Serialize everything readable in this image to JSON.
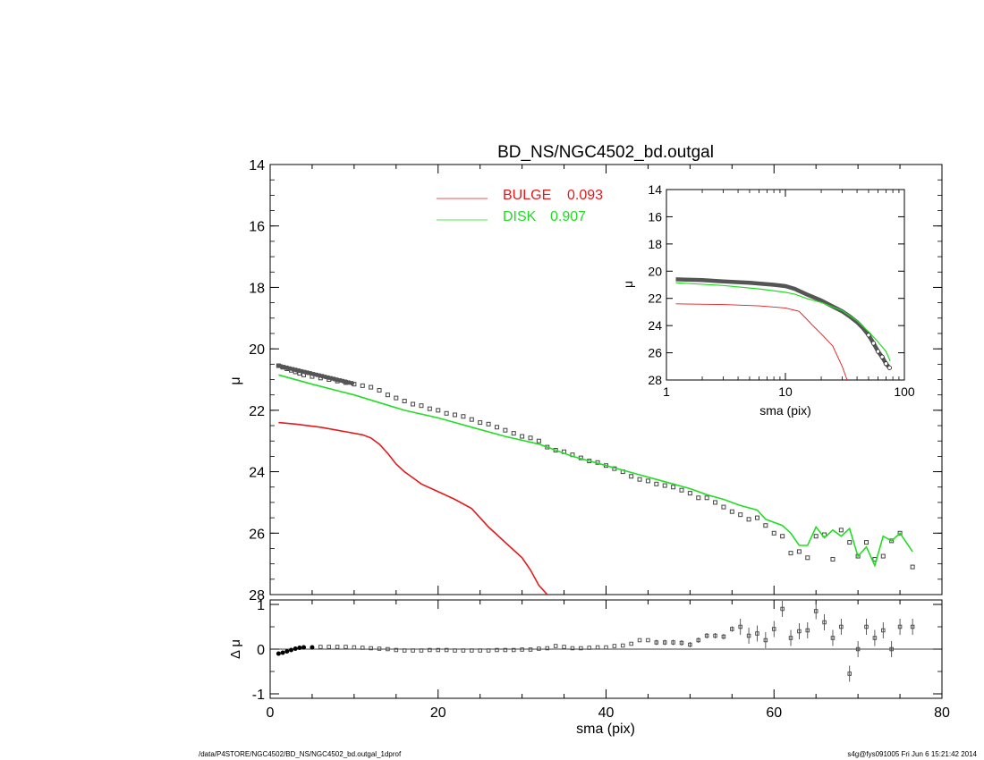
{
  "chart_data": [
    {
      "type": "scatter",
      "title": "BD_NS/NGC4502_bd.outgal",
      "ylabel": "μ",
      "xlim": [
        0,
        80
      ],
      "ylim": [
        28,
        14
      ],
      "yticks": [
        "14",
        "16",
        "18",
        "20",
        "22",
        "24",
        "26",
        "28"
      ],
      "legend": [
        {
          "label": "BULGE",
          "value": "0.093",
          "color": "#e31a1c"
        },
        {
          "label": "DISK",
          "value": "0.907",
          "color": "#22dd22"
        }
      ],
      "legend_placement": "top-center",
      "colors": {
        "bulge": "#e31a1c",
        "disk": "#22dd22",
        "data": "#555555"
      },
      "series": [
        {
          "name": "BULGE",
          "values_x": [
            1,
            3,
            6,
            9,
            11,
            12,
            13,
            14,
            15,
            16,
            17,
            18,
            20,
            22,
            24,
            26,
            28,
            30,
            31,
            32,
            33
          ],
          "values_y": [
            22.4,
            22.45,
            22.55,
            22.7,
            22.8,
            22.9,
            23.1,
            23.4,
            23.75,
            24.0,
            24.2,
            24.4,
            24.65,
            24.9,
            25.2,
            25.8,
            26.3,
            26.8,
            27.2,
            27.7,
            28.0
          ]
        },
        {
          "name": "DISK",
          "values_x": [
            1,
            5,
            10,
            13,
            16,
            20,
            24,
            28,
            32,
            34,
            36,
            40,
            42,
            44,
            46,
            48,
            50,
            52,
            54,
            56,
            58,
            59,
            61,
            62,
            63,
            64,
            65,
            66,
            67,
            68,
            69,
            70,
            71,
            72,
            73,
            74,
            75,
            76.5
          ],
          "values_y": [
            20.85,
            21.15,
            21.5,
            21.75,
            22.0,
            22.25,
            22.55,
            22.85,
            23.1,
            23.3,
            23.5,
            23.8,
            23.95,
            24.1,
            24.25,
            24.4,
            24.55,
            24.75,
            24.9,
            25.1,
            25.25,
            25.55,
            25.75,
            26.0,
            26.4,
            26.4,
            25.8,
            26.15,
            25.9,
            26.1,
            25.85,
            26.75,
            26.45,
            27.05,
            26.1,
            26.25,
            26.0,
            26.6
          ]
        },
        {
          "name": "",
          "values_x": [
            1,
            1.5,
            2,
            2.5,
            3,
            3.5,
            4,
            5,
            6,
            7,
            8,
            9,
            10,
            11,
            12,
            13,
            14,
            15,
            16,
            17,
            18,
            19,
            20,
            21,
            22,
            23,
            24,
            25,
            26,
            27,
            28,
            29,
            30,
            31,
            32,
            33,
            34,
            35,
            36,
            37,
            38,
            39,
            40,
            41,
            42,
            43,
            44,
            45,
            46,
            47,
            48,
            49,
            50,
            51,
            52,
            53,
            54,
            55,
            56,
            57,
            58,
            59,
            60,
            61,
            62,
            63,
            64,
            65,
            66,
            67,
            68,
            69,
            70,
            71,
            72,
            73,
            74,
            75,
            76.5
          ],
          "values_y": [
            20.55,
            20.6,
            20.65,
            20.7,
            20.75,
            20.8,
            20.85,
            20.9,
            20.95,
            21.0,
            21.05,
            21.1,
            21.15,
            21.2,
            21.25,
            21.35,
            21.5,
            21.6,
            21.7,
            21.8,
            21.85,
            21.95,
            22.0,
            22.1,
            22.15,
            22.2,
            22.3,
            22.4,
            22.45,
            22.55,
            22.65,
            22.75,
            22.85,
            22.9,
            23.0,
            23.2,
            23.3,
            23.35,
            23.45,
            23.55,
            23.65,
            23.7,
            23.8,
            23.9,
            24.0,
            24.15,
            24.25,
            24.3,
            24.4,
            24.45,
            24.5,
            24.6,
            24.7,
            24.85,
            24.85,
            25.0,
            25.15,
            25.3,
            25.4,
            25.55,
            25.5,
            25.75,
            26.0,
            26.1,
            26.65,
            26.6,
            26.8,
            26.1,
            26.05,
            26.85,
            25.9,
            26.3,
            26.75,
            26.3,
            26.85,
            26.75,
            26.25,
            26.0,
            27.1
          ]
        }
      ]
    },
    {
      "type": "scatter",
      "xlabel": "sma (pix)",
      "ylabel": "μ",
      "xscale": "log",
      "xlim": [
        1,
        100
      ],
      "ylim": [
        28,
        14
      ],
      "xticks": [
        "1",
        "10",
        "100"
      ],
      "yticks": [
        "14",
        "16",
        "18",
        "20",
        "22",
        "24",
        "26",
        "28"
      ],
      "series": [
        {
          "name": "",
          "values_x": [
            1.2,
            2,
            3,
            5,
            8,
            10,
            12,
            15,
            20,
            25,
            30,
            35,
            40,
            45,
            50,
            55,
            60,
            65,
            70,
            75
          ],
          "values_y": [
            20.6,
            20.65,
            20.75,
            20.85,
            21.0,
            21.1,
            21.3,
            21.7,
            22.15,
            22.6,
            22.95,
            23.35,
            23.75,
            24.2,
            24.7,
            25.3,
            25.9,
            26.3,
            26.8,
            27.1
          ]
        },
        {
          "name": "",
          "values_x": [
            1.2,
            3,
            6,
            10,
            12,
            15,
            20,
            30,
            40,
            50,
            60,
            70,
            76
          ],
          "values_y": [
            20.85,
            21.05,
            21.3,
            21.55,
            21.7,
            22.0,
            22.3,
            22.9,
            23.65,
            24.45,
            25.2,
            25.9,
            26.6
          ]
        },
        {
          "name": "",
          "values_x": [
            1.2,
            3,
            6,
            10,
            13,
            15,
            17,
            20,
            25,
            30,
            33
          ],
          "values_y": [
            22.4,
            22.45,
            22.55,
            22.7,
            22.95,
            23.5,
            24.0,
            24.6,
            25.5,
            27.0,
            28.0
          ]
        }
      ]
    },
    {
      "type": "scatter",
      "xlabel": "sma (pix)",
      "ylabel": "Δ μ",
      "xlim": [
        0,
        80
      ],
      "ylim": [
        -1.1,
        1.1
      ],
      "xticks": [
        "0",
        "20",
        "40",
        "60",
        "80"
      ],
      "yticks": [
        "1",
        "0",
        "-1"
      ],
      "series": [
        {
          "name": "",
          "values_x": [
            1,
            1.5,
            2,
            2.5,
            3,
            3.5,
            4,
            5,
            6,
            7,
            8,
            9,
            10,
            11,
            12,
            13,
            14,
            15,
            16,
            17,
            18,
            19,
            20,
            21,
            22,
            23,
            24,
            25,
            26,
            27,
            28,
            29,
            30,
            31,
            32,
            33,
            34,
            35,
            36,
            37,
            38,
            39,
            40,
            41,
            42,
            43,
            44,
            45,
            46,
            47,
            48,
            49,
            50,
            51,
            52,
            53,
            54,
            55,
            56,
            57,
            58,
            59,
            60,
            61,
            62,
            63,
            64,
            65,
            66,
            67,
            68,
            69,
            70,
            71,
            72,
            73,
            74,
            75,
            76.5
          ],
          "values_y": [
            -0.1,
            -0.08,
            -0.05,
            -0.02,
            0.01,
            0.03,
            0.04,
            0.04,
            0.05,
            0.05,
            0.05,
            0.05,
            0.04,
            0.03,
            0.02,
            0.01,
            0.0,
            -0.02,
            -0.03,
            -0.03,
            -0.03,
            -0.02,
            -0.02,
            -0.02,
            -0.03,
            -0.03,
            -0.03,
            -0.03,
            -0.03,
            -0.02,
            -0.02,
            -0.02,
            -0.01,
            -0.01,
            0.01,
            0.02,
            0.07,
            0.05,
            0.02,
            0.02,
            0.03,
            0.04,
            0.04,
            0.07,
            0.08,
            0.12,
            0.2,
            0.2,
            0.15,
            0.15,
            0.15,
            0.14,
            0.1,
            0.2,
            0.3,
            0.3,
            0.28,
            0.45,
            0.5,
            0.3,
            0.35,
            0.2,
            0.45,
            0.9,
            0.25,
            0.4,
            0.42,
            0.85,
            0.6,
            0.25,
            0.5,
            -0.55,
            0.0,
            0.5,
            0.25,
            0.42,
            0.0,
            0.5,
            0.5
          ]
        }
      ]
    }
  ],
  "footer": {
    "left": "/data/P4STORE/NGC4502/BD_NS/NGC4502_bd.outgal_1dprof",
    "right": "s4g@fys091005  Fri Jun  6 15:21:42 2014"
  }
}
